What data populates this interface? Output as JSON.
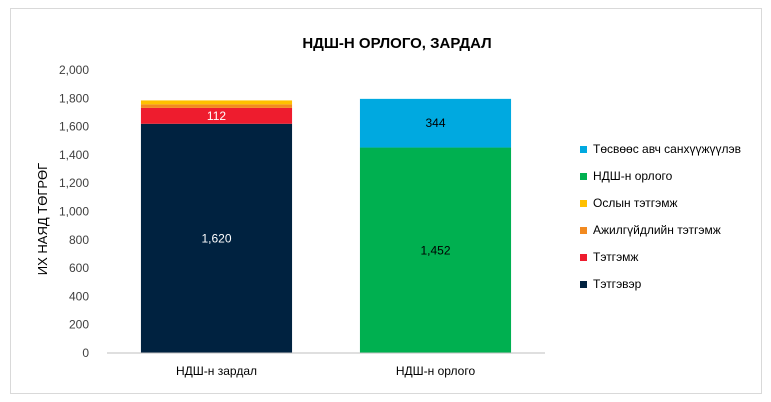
{
  "chart_data": {
    "type": "bar",
    "stacked": true,
    "title": "НДШ-Н ОРЛОГО, ЗАРДАЛ",
    "xlabel": "",
    "ylabel": "ИХ НАЯД ТӨГРӨГ",
    "ylim": [
      0,
      2000
    ],
    "yticks": [
      0,
      200,
      400,
      600,
      800,
      1000,
      1200,
      1400,
      1600,
      1800,
      2000
    ],
    "ytick_labels": [
      "0",
      "200",
      "400",
      "600",
      "800",
      "1,000",
      "1,200",
      "1,400",
      "1,600",
      "1,800",
      "2,000"
    ],
    "grid": false,
    "legend_position": "right",
    "categories": [
      "НДШ-н зардал",
      "НДШ-н орлого"
    ],
    "series": [
      {
        "name": "Тэтгэвэр",
        "color": "#002240",
        "values": [
          1620,
          0
        ],
        "labels": [
          "1,620",
          ""
        ],
        "label_color": "#ffffff"
      },
      {
        "name": "Тэтгэмж",
        "color": "#ee1c2e",
        "values": [
          112,
          0
        ],
        "labels": [
          "112",
          ""
        ],
        "label_color": "#ffffff"
      },
      {
        "name": "Ажилгүйдлийн тэтгэмж",
        "color": "#f28a20",
        "values": [
          25,
          0
        ],
        "labels": [
          "",
          ""
        ],
        "label_color": "#000000"
      },
      {
        "name": "Ослын тэтгэмж",
        "color": "#ffc000",
        "values": [
          28,
          0
        ],
        "labels": [
          "",
          ""
        ],
        "label_color": "#000000"
      },
      {
        "name": "НДШ-н орлого",
        "color": "#00b050",
        "values": [
          0,
          1452
        ],
        "labels": [
          "",
          "1,452"
        ],
        "label_color": "#000000"
      },
      {
        "name": "Төсвөөс авч санхүүжүүлэв",
        "color": "#00a9e0",
        "values": [
          0,
          344
        ],
        "labels": [
          "",
          "344"
        ],
        "label_color": "#000000"
      }
    ],
    "legend_order": [
      "Төсвөөс авч санхүүжүүлэв",
      "НДШ-н орлого",
      "Ослын тэтгэмж",
      "Ажилгүйдлийн тэтгэмж",
      "Тэтгэмж",
      "Тэтгэвэр"
    ]
  }
}
